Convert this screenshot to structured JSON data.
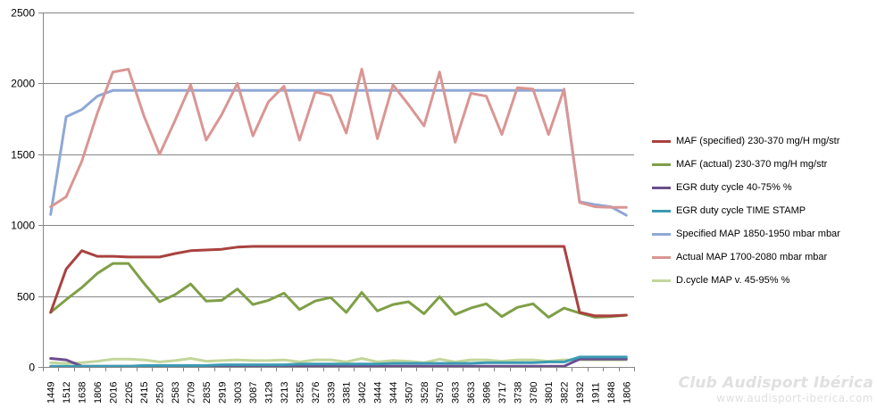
{
  "chart_data": {
    "type": "line",
    "title": "",
    "xlabel": "",
    "ylabel": "",
    "ylim": [
      0,
      2500
    ],
    "yticks": [
      0,
      500,
      1000,
      1500,
      2000,
      2500
    ],
    "grid": "horizontal",
    "legend_position": "right",
    "categories": [
      "1449",
      "1512",
      "1638",
      "1806",
      "2016",
      "2205",
      "2415",
      "2520",
      "2583",
      "2709",
      "2835",
      "2919",
      "3003",
      "3087",
      "3129",
      "3213",
      "3255",
      "3276",
      "3339",
      "3381",
      "3402",
      "3444",
      "3444",
      "3507",
      "3528",
      "3570",
      "3633",
      "3633",
      "3696",
      "3717",
      "3738",
      "3780",
      "3801",
      "3822",
      "1932",
      "1911",
      "1848",
      "1806"
    ],
    "series": [
      {
        "name": "MAF (specified) 230-370 mg/H  mg/str",
        "color": "#a94240",
        "values": [
          385,
          690,
          820,
          780,
          780,
          775,
          775,
          775,
          800,
          820,
          825,
          830,
          845,
          850,
          850,
          850,
          850,
          850,
          850,
          850,
          850,
          850,
          850,
          850,
          850,
          850,
          850,
          850,
          850,
          850,
          850,
          850,
          850,
          850,
          385,
          360,
          360,
          365
        ]
      },
      {
        "name": "MAF (actual)  230-370 mg/H  mg/str",
        "color": "#7f9f47",
        "values": [
          385,
          475,
          560,
          660,
          730,
          730,
          590,
          460,
          510,
          585,
          465,
          470,
          550,
          440,
          470,
          520,
          405,
          465,
          490,
          385,
          525,
          395,
          440,
          460,
          375,
          495,
          370,
          415,
          445,
          355,
          420,
          445,
          350,
          415,
          380,
          350,
          355,
          365
        ]
      },
      {
        "name": "EGR duty cycle 40-75%  %",
        "color": "#6b4e8e",
        "values": [
          60,
          50,
          5,
          5,
          5,
          5,
          5,
          5,
          5,
          5,
          5,
          5,
          5,
          5,
          5,
          5,
          5,
          5,
          5,
          5,
          5,
          5,
          5,
          5,
          5,
          5,
          5,
          5,
          5,
          5,
          5,
          5,
          5,
          5,
          55,
          55,
          55,
          55
        ]
      },
      {
        "name": "EGR duty cycle TIME  STAMP",
        "color": "#3b9bb4",
        "values": [
          5,
          5,
          5,
          5,
          5,
          5,
          10,
          10,
          10,
          10,
          10,
          15,
          15,
          15,
          15,
          15,
          20,
          20,
          20,
          20,
          20,
          20,
          25,
          25,
          25,
          25,
          25,
          25,
          30,
          30,
          30,
          30,
          35,
          35,
          70,
          70,
          70,
          70
        ]
      },
      {
        "name": "Specified MAP 1850-1950 mbar   mbar",
        "color": "#8ea8d6",
        "values": [
          1075,
          1765,
          1815,
          1910,
          1950,
          1950,
          1950,
          1950,
          1950,
          1950,
          1950,
          1950,
          1950,
          1950,
          1950,
          1950,
          1950,
          1950,
          1950,
          1950,
          1950,
          1950,
          1950,
          1950,
          1950,
          1950,
          1950,
          1950,
          1950,
          1950,
          1950,
          1950,
          1950,
          1950,
          1165,
          1145,
          1130,
          1070
        ]
      },
      {
        "name": "Actual MAP 1700-2080 mbar   mbar",
        "color": "#d99694",
        "values": [
          1130,
          1200,
          1450,
          1790,
          2080,
          2100,
          1770,
          1500,
          1740,
          1990,
          1600,
          1780,
          2000,
          1630,
          1870,
          1980,
          1600,
          1940,
          1915,
          1650,
          2100,
          1610,
          1990,
          1850,
          1700,
          2080,
          1585,
          1930,
          1910,
          1640,
          1970,
          1960,
          1640,
          1960,
          1160,
          1130,
          1125,
          1125
        ]
      },
      {
        "name": "D.cycle MAP v. 45-95%  %",
        "color": "#c3d69b",
        "values": [
          30,
          25,
          30,
          40,
          55,
          55,
          50,
          35,
          45,
          60,
          40,
          45,
          50,
          45,
          45,
          50,
          35,
          50,
          50,
          35,
          60,
          35,
          45,
          40,
          30,
          55,
          35,
          50,
          50,
          40,
          50,
          50,
          40,
          50,
          50,
          50,
          50,
          50
        ]
      }
    ]
  },
  "watermark": {
    "title": "Club Audisport Ibérica",
    "url": "www.audisport-iberica.com"
  }
}
